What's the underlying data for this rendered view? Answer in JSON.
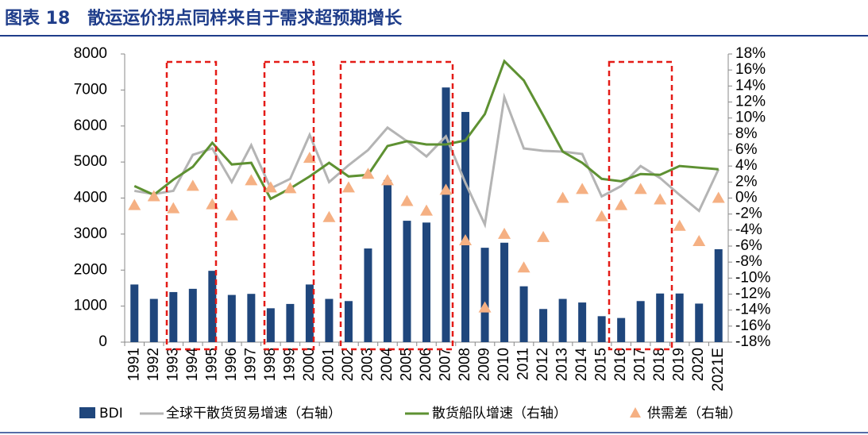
{
  "chart_data": {
    "type": "bar",
    "title": "图表 18　散运运价拐点同样来自于需求超预期增长",
    "categories": [
      "1991",
      "1992",
      "1993",
      "1994",
      "1995",
      "1996",
      "1997",
      "1998",
      "1999",
      "2000",
      "2001",
      "2002",
      "2003",
      "2004",
      "2005",
      "2006",
      "2007",
      "2008",
      "2009",
      "2010",
      "2011",
      "2012",
      "2013",
      "2014",
      "2015",
      "2016",
      "2017",
      "2018",
      "2019",
      "2020",
      "2021E"
    ],
    "ylim": [
      0,
      8000
    ],
    "yticks": [
      0,
      1000,
      2000,
      3000,
      4000,
      5000,
      6000,
      7000,
      8000
    ],
    "y2lim": [
      -18,
      18
    ],
    "y2ticks": [
      {
        "value": -18,
        "label": "-18%"
      },
      {
        "value": -16,
        "label": "-16%"
      },
      {
        "value": -14,
        "label": "-14%"
      },
      {
        "value": -12,
        "label": "-12%"
      },
      {
        "value": -10,
        "label": "-10%"
      },
      {
        "value": -8,
        "label": "-8%"
      },
      {
        "value": -6,
        "label": "-6%"
      },
      {
        "value": -4,
        "label": "-4%"
      },
      {
        "value": -2,
        "label": "-2%"
      },
      {
        "value": 0,
        "label": "0%"
      },
      {
        "value": 2,
        "label": "2%"
      },
      {
        "value": 4,
        "label": "4%"
      },
      {
        "value": 6,
        "label": "6%"
      },
      {
        "value": 8,
        "label": "8%"
      },
      {
        "value": 10,
        "label": "10%"
      },
      {
        "value": 12,
        "label": "12%"
      },
      {
        "value": 14,
        "label": "14%"
      },
      {
        "value": 16,
        "label": "16%"
      },
      {
        "value": 18,
        "label": "18%"
      }
    ],
    "series": [
      {
        "name": "BDI",
        "type": "bar",
        "color": "#1f467c",
        "values": [
          1600,
          1200,
          1390,
          1480,
          1980,
          1310,
          1340,
          940,
          1060,
          1600,
          1200,
          1140,
          2600,
          4500,
          3370,
          3320,
          7070,
          6390,
          2620,
          2760,
          1550,
          920,
          1200,
          1100,
          720,
          670,
          1140,
          1350,
          1350,
          1070,
          2580
        ]
      },
      {
        "name": "全球干散货贸易增速（右轴）",
        "type": "line",
        "axis": "y2",
        "color": "#b4b4b4",
        "values": [
          0.9,
          0.5,
          0.9,
          5.4,
          6.2,
          2.0,
          6.6,
          1.2,
          2.4,
          7.9,
          2.0,
          4.1,
          6.0,
          8.8,
          7.1,
          5.2,
          7.7,
          1.9,
          -3.3,
          12.6,
          6.2,
          5.9,
          5.8,
          5.5,
          0.2,
          1.5,
          4.0,
          2.5,
          0.4,
          -1.6,
          3.6
        ]
      },
      {
        "name": "散货船队增速（右轴）",
        "type": "line",
        "axis": "y2",
        "color": "#5e9132",
        "values": [
          1.5,
          0.4,
          2.3,
          3.9,
          6.9,
          4.2,
          4.4,
          -0.1,
          1.2,
          2.7,
          4.4,
          2.7,
          2.9,
          6.5,
          7.1,
          6.7,
          6.7,
          7.2,
          10.5,
          17.1,
          14.7,
          10.3,
          5.8,
          4.4,
          2.4,
          2.1,
          3.0,
          2.9,
          4.0,
          3.8,
          3.6
        ]
      },
      {
        "name": "供需差（右轴）",
        "type": "scatter",
        "axis": "y2",
        "color": "#f5b083",
        "values": [
          -0.9,
          0.2,
          -1.3,
          1.5,
          -0.8,
          -2.2,
          2.2,
          1.3,
          1.2,
          5.0,
          -2.4,
          1.3,
          3.0,
          2.2,
          -0.4,
          -1.6,
          1.0,
          -5.3,
          -13.7,
          -4.5,
          -8.7,
          -4.9,
          0.0,
          1.1,
          -2.3,
          -0.9,
          1.1,
          -0.2,
          -3.5,
          -5.4,
          0.0
        ]
      }
    ]
  }
}
